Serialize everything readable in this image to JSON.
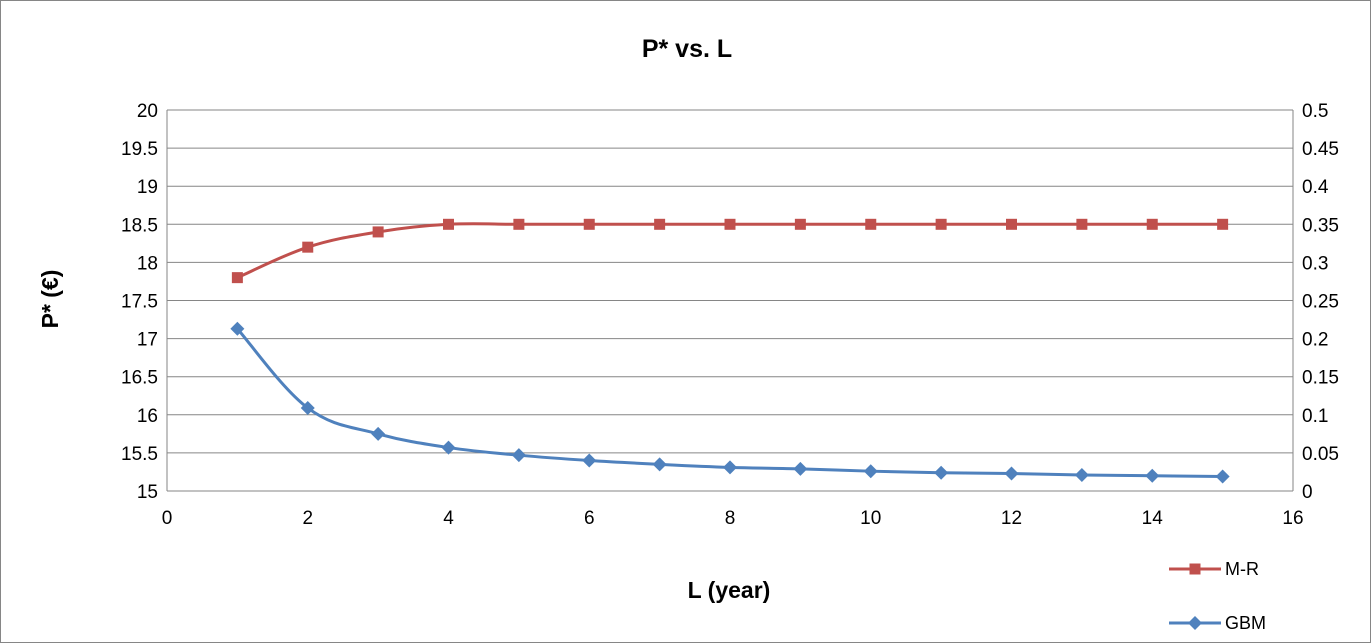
{
  "chart_data": {
    "type": "line",
    "title": "P* vs. L",
    "xlabel": "L (year)",
    "ylabel": "P*  (€)",
    "y2label": "",
    "xlim": [
      0,
      16
    ],
    "xticks": [
      "0",
      "2",
      "4",
      "6",
      "8",
      "10",
      "12",
      "14",
      "16"
    ],
    "ylim": [
      15,
      20
    ],
    "yticks": [
      "15",
      "15.5",
      "16",
      "16.5",
      "17",
      "17.5",
      "18",
      "18.5",
      "19",
      "19.5",
      "20"
    ],
    "y2lim": [
      0,
      0.5
    ],
    "y2ticks": [
      "0",
      "0.05",
      "0.1",
      "0.15",
      "0.2",
      "0.25",
      "0.3",
      "0.35",
      "0.4",
      "0.45",
      "0.5"
    ],
    "grid": "horizontal",
    "legend_position": "bottom-right",
    "series": [
      {
        "name": "M-R",
        "axis": "left",
        "color": "#C0504D",
        "marker": "square",
        "x": [
          1,
          2,
          3,
          4,
          5,
          6,
          7,
          8,
          9,
          10,
          11,
          12,
          13,
          14,
          15
        ],
        "values": [
          17.8,
          18.2,
          18.4,
          18.5,
          18.5,
          18.5,
          18.5,
          18.5,
          18.5,
          18.5,
          18.5,
          18.5,
          18.5,
          18.5,
          18.5
        ]
      },
      {
        "name": "GBM",
        "axis": "left",
        "color": "#4F81BD",
        "marker": "diamond",
        "x": [
          1,
          2,
          3,
          4,
          5,
          6,
          7,
          8,
          9,
          10,
          11,
          12,
          13,
          14,
          15
        ],
        "values": [
          17.13,
          16.09,
          15.75,
          15.57,
          15.47,
          15.4,
          15.35,
          15.31,
          15.29,
          15.26,
          15.24,
          15.23,
          15.21,
          15.2,
          15.19
        ]
      }
    ]
  }
}
